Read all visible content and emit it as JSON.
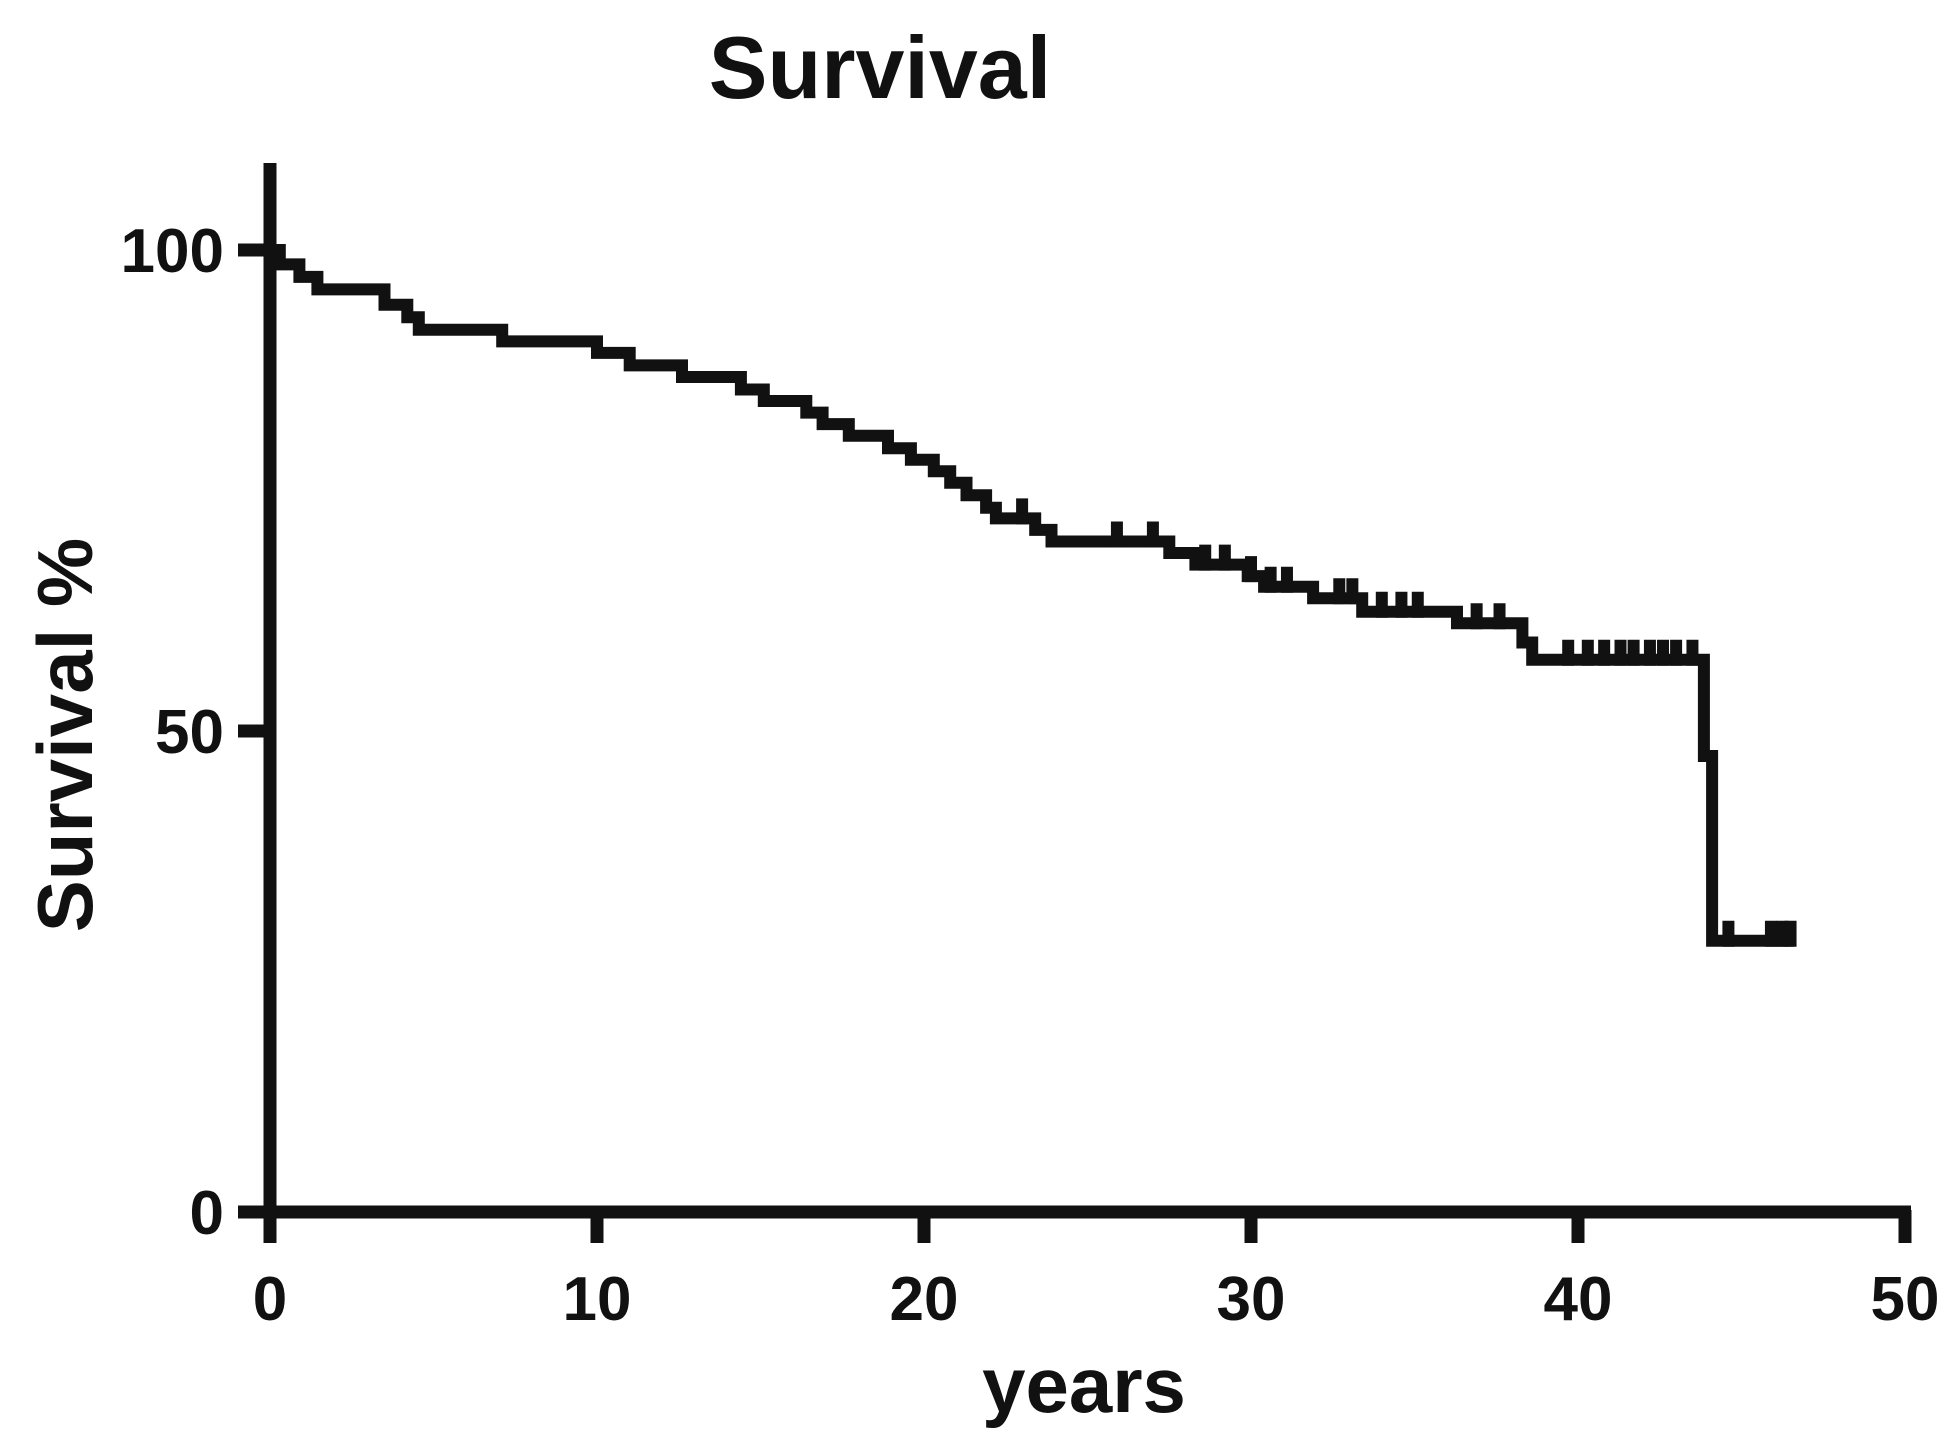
{
  "title": "Survival",
  "x_axis": {
    "label": "years",
    "tick_labels": [
      "0",
      "10",
      "20",
      "30",
      "40",
      "50"
    ],
    "tick_values": [
      0,
      10,
      20,
      30,
      40,
      50
    ],
    "range": [
      0,
      50
    ]
  },
  "y_axis": {
    "label": "Survival %",
    "tick_labels": [
      "0",
      "50",
      "100"
    ],
    "tick_values": [
      0,
      50,
      100
    ],
    "range": [
      0,
      109
    ]
  },
  "colors": {
    "ink": "#111111",
    "background": "#ffffff"
  },
  "chart_data": {
    "type": "line",
    "subtype": "kaplan-meier-step",
    "title": "Survival",
    "xlabel": "years",
    "ylabel": "Survival %",
    "xlim": [
      0,
      50
    ],
    "ylim": [
      0,
      109
    ],
    "grid": false,
    "legend": null,
    "series": [
      {
        "name": "Survival",
        "steps": [
          [
            0,
            100
          ],
          [
            0.3,
            98.5
          ],
          [
            0.9,
            97.2
          ],
          [
            1.45,
            95.9
          ],
          [
            3.5,
            94.3
          ],
          [
            4.2,
            93.0
          ],
          [
            4.55,
            91.7
          ],
          [
            7.1,
            90.5
          ],
          [
            10.0,
            89.3
          ],
          [
            11.0,
            88.0
          ],
          [
            12.6,
            86.8
          ],
          [
            14.4,
            85.5
          ],
          [
            15.1,
            84.3
          ],
          [
            16.4,
            83.1
          ],
          [
            16.9,
            81.9
          ],
          [
            17.7,
            80.7
          ],
          [
            18.9,
            79.4
          ],
          [
            19.6,
            78.2
          ],
          [
            20.3,
            77.0
          ],
          [
            20.8,
            75.8
          ],
          [
            21.3,
            74.5
          ],
          [
            21.9,
            73.2
          ],
          [
            22.2,
            72.1
          ],
          [
            23.4,
            70.9
          ],
          [
            23.9,
            69.7
          ],
          [
            27.5,
            68.5
          ],
          [
            28.3,
            67.3
          ],
          [
            29.9,
            66.1
          ],
          [
            30.4,
            65.0
          ],
          [
            31.9,
            63.8
          ],
          [
            33.4,
            62.4
          ],
          [
            36.3,
            61.2
          ],
          [
            38.3,
            59.2
          ],
          [
            38.6,
            57.4
          ],
          [
            43.85,
            47.4
          ],
          [
            44.1,
            28.2
          ]
        ],
        "end_x": 46.6,
        "censor_marks": [
          23.0,
          25.9,
          27.0,
          28.6,
          29.2,
          30.0,
          30.6,
          31.1,
          32.7,
          33.1,
          34.0,
          34.6,
          35.1,
          36.9,
          37.6,
          39.7,
          40.3,
          40.8,
          41.3,
          41.7,
          42.2,
          42.6,
          43.0,
          43.5,
          44.6,
          45.9,
          46.25,
          46.5
        ]
      }
    ]
  }
}
